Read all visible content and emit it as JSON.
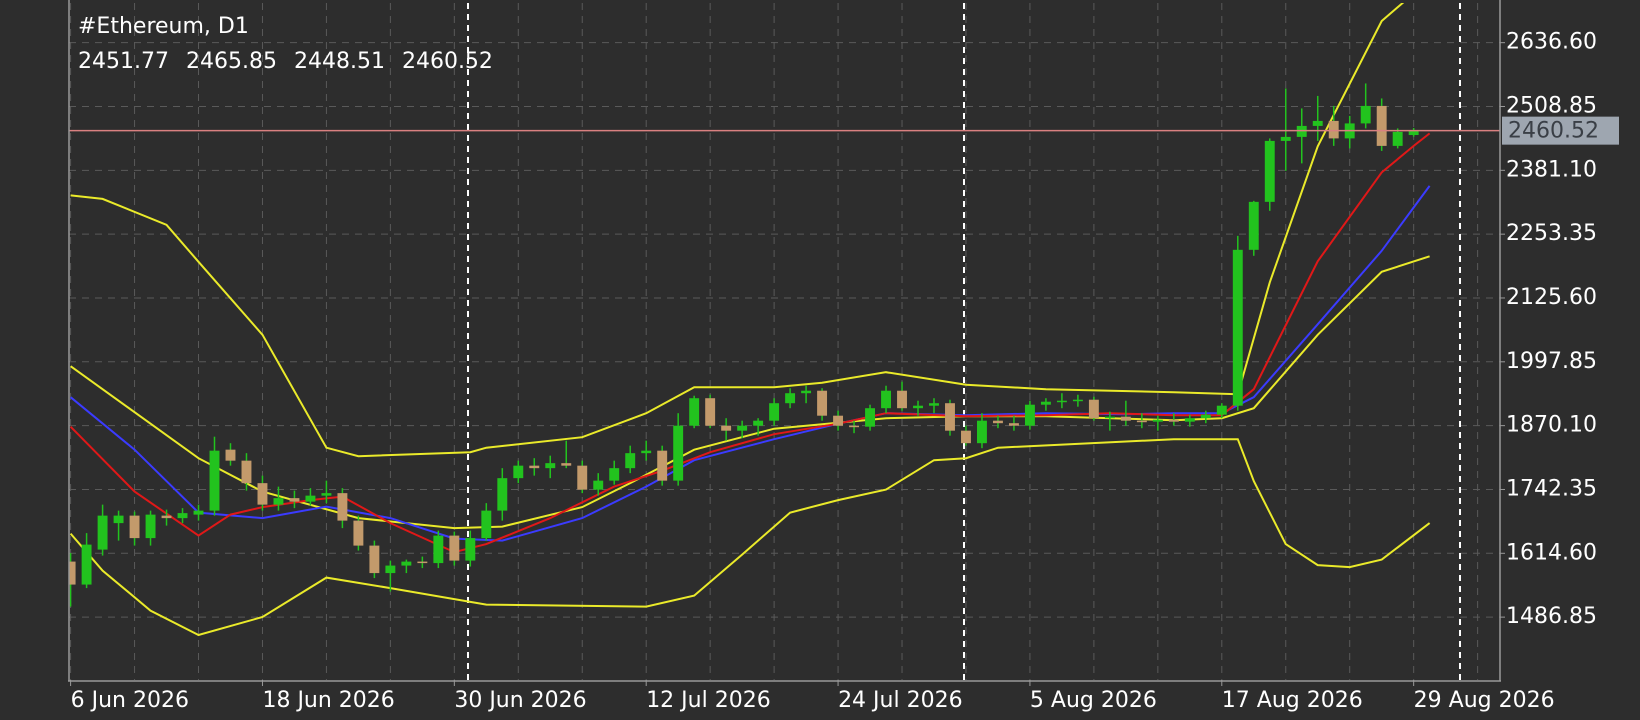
{
  "chart_data": {
    "type": "candlestick",
    "title": "#Ethereum, D1",
    "bull_color": "#22c31e",
    "bear_color": "#c39a6b",
    "wick_color": "#22c31e",
    "price_line_color": "#d98080",
    "xlim": [
      -0.1,
      89.4
    ],
    "ylim": [
      1361,
      2716
    ],
    "xticks": [
      {
        "value": 0,
        "label": "6 Jun 2026"
      },
      {
        "value": 12,
        "label": "18 Jun 2026"
      },
      {
        "value": 24,
        "label": "30 Jun 2026"
      },
      {
        "value": 36,
        "label": "12 Jul 2026"
      },
      {
        "value": 48,
        "label": "24 Jul 2026"
      },
      {
        "value": 60,
        "label": "5 Aug 2026"
      },
      {
        "value": 72,
        "label": "17 Aug 2026"
      },
      {
        "value": 84,
        "label": "29 Aug 2026"
      }
    ],
    "yticks": [
      {
        "value": 1486.85,
        "label": "1486.85"
      },
      {
        "value": 1614.6,
        "label": "1614.60"
      },
      {
        "value": 1742.35,
        "label": "1742.35"
      },
      {
        "value": 1870.1,
        "label": "1870.10"
      },
      {
        "value": 1997.85,
        "label": "1997.85"
      },
      {
        "value": 2125.6,
        "label": "2125.60"
      },
      {
        "value": 2253.35,
        "label": "2253.35"
      },
      {
        "value": 2381.1,
        "label": "2381.10"
      },
      {
        "value": 2508.85,
        "label": "2508.85"
      },
      {
        "value": 2636.6,
        "label": "2636.60"
      }
    ],
    "grid": true,
    "ohlc": [
      [
        1598,
        1615,
        1508,
        1552
      ],
      [
        1552,
        1655,
        1545,
        1632
      ],
      [
        1622,
        1712,
        1610,
        1690
      ],
      [
        1675,
        1700,
        1640,
        1690
      ],
      [
        1690,
        1698,
        1630,
        1645
      ],
      [
        1645,
        1700,
        1630,
        1692
      ],
      [
        1690,
        1702,
        1670,
        1685
      ],
      [
        1685,
        1705,
        1675,
        1695
      ],
      [
        1692,
        1712,
        1680,
        1700
      ],
      [
        1700,
        1848,
        1690,
        1820
      ],
      [
        1822,
        1835,
        1790,
        1800
      ],
      [
        1800,
        1815,
        1740,
        1755
      ],
      [
        1755,
        1770,
        1700,
        1712
      ],
      [
        1712,
        1748,
        1700,
        1725
      ],
      [
        1725,
        1740,
        1705,
        1718
      ],
      [
        1718,
        1745,
        1710,
        1730
      ],
      [
        1730,
        1760,
        1715,
        1735
      ],
      [
        1735,
        1745,
        1665,
        1680
      ],
      [
        1680,
        1690,
        1620,
        1630
      ],
      [
        1630,
        1640,
        1565,
        1575
      ],
      [
        1575,
        1600,
        1538,
        1590
      ],
      [
        1590,
        1602,
        1575,
        1598
      ],
      [
        1598,
        1608,
        1585,
        1595
      ],
      [
        1595,
        1660,
        1585,
        1650
      ],
      [
        1650,
        1658,
        1590,
        1600
      ],
      [
        1600,
        1660,
        1588,
        1645
      ],
      [
        1645,
        1715,
        1640,
        1700
      ],
      [
        1700,
        1785,
        1680,
        1765
      ],
      [
        1765,
        1800,
        1755,
        1790
      ],
      [
        1790,
        1805,
        1770,
        1785
      ],
      [
        1785,
        1810,
        1765,
        1795
      ],
      [
        1795,
        1840,
        1785,
        1790
      ],
      [
        1790,
        1800,
        1735,
        1742
      ],
      [
        1742,
        1775,
        1730,
        1760
      ],
      [
        1760,
        1800,
        1752,
        1785
      ],
      [
        1785,
        1830,
        1775,
        1815
      ],
      [
        1815,
        1840,
        1800,
        1820
      ],
      [
        1820,
        1830,
        1750,
        1760
      ],
      [
        1760,
        1895,
        1750,
        1870
      ],
      [
        1870,
        1930,
        1865,
        1925
      ],
      [
        1925,
        1932,
        1865,
        1870
      ],
      [
        1870,
        1885,
        1840,
        1860
      ],
      [
        1860,
        1880,
        1845,
        1870
      ],
      [
        1870,
        1885,
        1850,
        1880
      ],
      [
        1880,
        1925,
        1870,
        1915
      ],
      [
        1915,
        1945,
        1905,
        1935
      ],
      [
        1935,
        1950,
        1915,
        1940
      ],
      [
        1940,
        1945,
        1880,
        1890
      ],
      [
        1890,
        1900,
        1860,
        1870
      ],
      [
        1870,
        1880,
        1855,
        1868
      ],
      [
        1868,
        1912,
        1860,
        1905
      ],
      [
        1905,
        1950,
        1895,
        1940
      ],
      [
        1940,
        1958,
        1900,
        1905
      ],
      [
        1905,
        1920,
        1890,
        1910
      ],
      [
        1910,
        1925,
        1895,
        1915
      ],
      [
        1915,
        1922,
        1850,
        1860
      ],
      [
        1860,
        1870,
        1830,
        1835
      ],
      [
        1835,
        1895,
        1825,
        1880
      ],
      [
        1880,
        1890,
        1865,
        1875
      ],
      [
        1875,
        1890,
        1860,
        1870
      ],
      [
        1870,
        1920,
        1862,
        1912
      ],
      [
        1912,
        1925,
        1900,
        1918
      ],
      [
        1918,
        1935,
        1905,
        1920
      ],
      [
        1920,
        1932,
        1908,
        1922
      ],
      [
        1922,
        1928,
        1880,
        1885
      ],
      [
        1885,
        1898,
        1860,
        1888
      ],
      [
        1888,
        1920,
        1870,
        1880
      ],
      [
        1880,
        1895,
        1865,
        1878
      ],
      [
        1878,
        1890,
        1860,
        1882
      ],
      [
        1882,
        1895,
        1870,
        1878
      ],
      [
        1878,
        1892,
        1868,
        1885
      ],
      [
        1885,
        1900,
        1875,
        1892
      ],
      [
        1892,
        1915,
        1885,
        1910
      ],
      [
        1910,
        2250,
        1900,
        2222
      ],
      [
        2222,
        2320,
        2210,
        2318
      ],
      [
        2318,
        2445,
        2300,
        2440
      ],
      [
        2440,
        2545,
        2380,
        2448
      ],
      [
        2448,
        2505,
        2395,
        2470
      ],
      [
        2470,
        2530,
        2440,
        2480
      ],
      [
        2480,
        2510,
        2430,
        2445
      ],
      [
        2445,
        2490,
        2425,
        2475
      ],
      [
        2475,
        2555,
        2465,
        2510
      ],
      [
        2510,
        2525,
        2420,
        2430
      ],
      [
        2430,
        2465,
        2425,
        2458
      ],
      [
        2451.77,
        2465.85,
        2448.51,
        2460.52
      ]
    ],
    "lines": [
      {
        "color": "#eaea2a",
        "x": [
          0,
          2,
          6,
          8,
          12,
          16,
          18,
          25,
          26,
          32,
          36,
          39,
          44,
          47,
          51,
          56,
          61,
          69,
          73,
          75,
          78,
          82,
          84
        ],
        "values": [
          2331,
          2324,
          2272,
          2198,
          2052,
          1826,
          1809,
          1817,
          1826,
          1847,
          1895,
          1947,
          1947,
          1956,
          1977,
          1952,
          1943,
          1937,
          1933,
          2157,
          2429,
          2680,
          2735
        ]
      },
      {
        "color": "#eaea2a",
        "x": [
          0,
          2,
          5,
          8,
          12,
          16,
          20,
          26,
          36,
          39,
          42,
          45,
          48,
          51,
          54,
          56,
          58,
          69,
          73,
          74,
          76,
          78,
          80,
          82,
          85
        ],
        "values": [
          1654,
          1580,
          1500,
          1451,
          1487,
          1566,
          1545,
          1512,
          1508,
          1530,
          1612,
          1696,
          1721,
          1742,
          1801,
          1805,
          1826,
          1843,
          1843,
          1759,
          1633,
          1591,
          1587,
          1602,
          1675
        ]
      },
      {
        "color": "#eaea2a",
        "x": [
          0,
          8,
          12,
          18,
          24,
          27,
          32,
          35,
          39,
          44,
          51,
          56,
          61,
          69,
          72,
          74,
          78,
          82,
          85
        ],
        "values": [
          1989,
          1805,
          1738,
          1685,
          1665,
          1668,
          1707,
          1755,
          1822,
          1864,
          1885,
          1889,
          1889,
          1881,
          1885,
          1905,
          2052,
          2178,
          2209
        ]
      },
      {
        "color": "#3b3bff",
        "x": [
          0,
          4,
          8,
          12,
          16,
          20,
          24,
          27,
          32,
          36,
          39,
          44,
          48,
          51,
          56,
          61,
          66,
          69,
          72,
          74,
          78,
          82,
          85
        ],
        "values": [
          1927,
          1822,
          1696,
          1685,
          1708,
          1685,
          1644,
          1640,
          1685,
          1748,
          1801,
          1843,
          1874,
          1895,
          1891,
          1895,
          1893,
          1895,
          1895,
          1927,
          2073,
          2220,
          2350
        ]
      },
      {
        "color": "#e01818",
        "x": [
          0,
          4,
          8,
          10,
          12,
          15,
          17,
          20,
          24,
          26,
          30,
          34,
          37,
          40,
          44,
          48,
          51,
          56,
          61,
          65,
          69,
          72,
          74,
          78,
          82,
          84,
          85
        ],
        "values": [
          1868,
          1738,
          1650,
          1692,
          1707,
          1721,
          1728,
          1675,
          1617,
          1633,
          1685,
          1748,
          1780,
          1817,
          1853,
          1874,
          1895,
          1889,
          1891,
          1895,
          1891,
          1891,
          1943,
          2199,
          2377,
          2430,
          2455
        ]
      }
    ]
  }
}
